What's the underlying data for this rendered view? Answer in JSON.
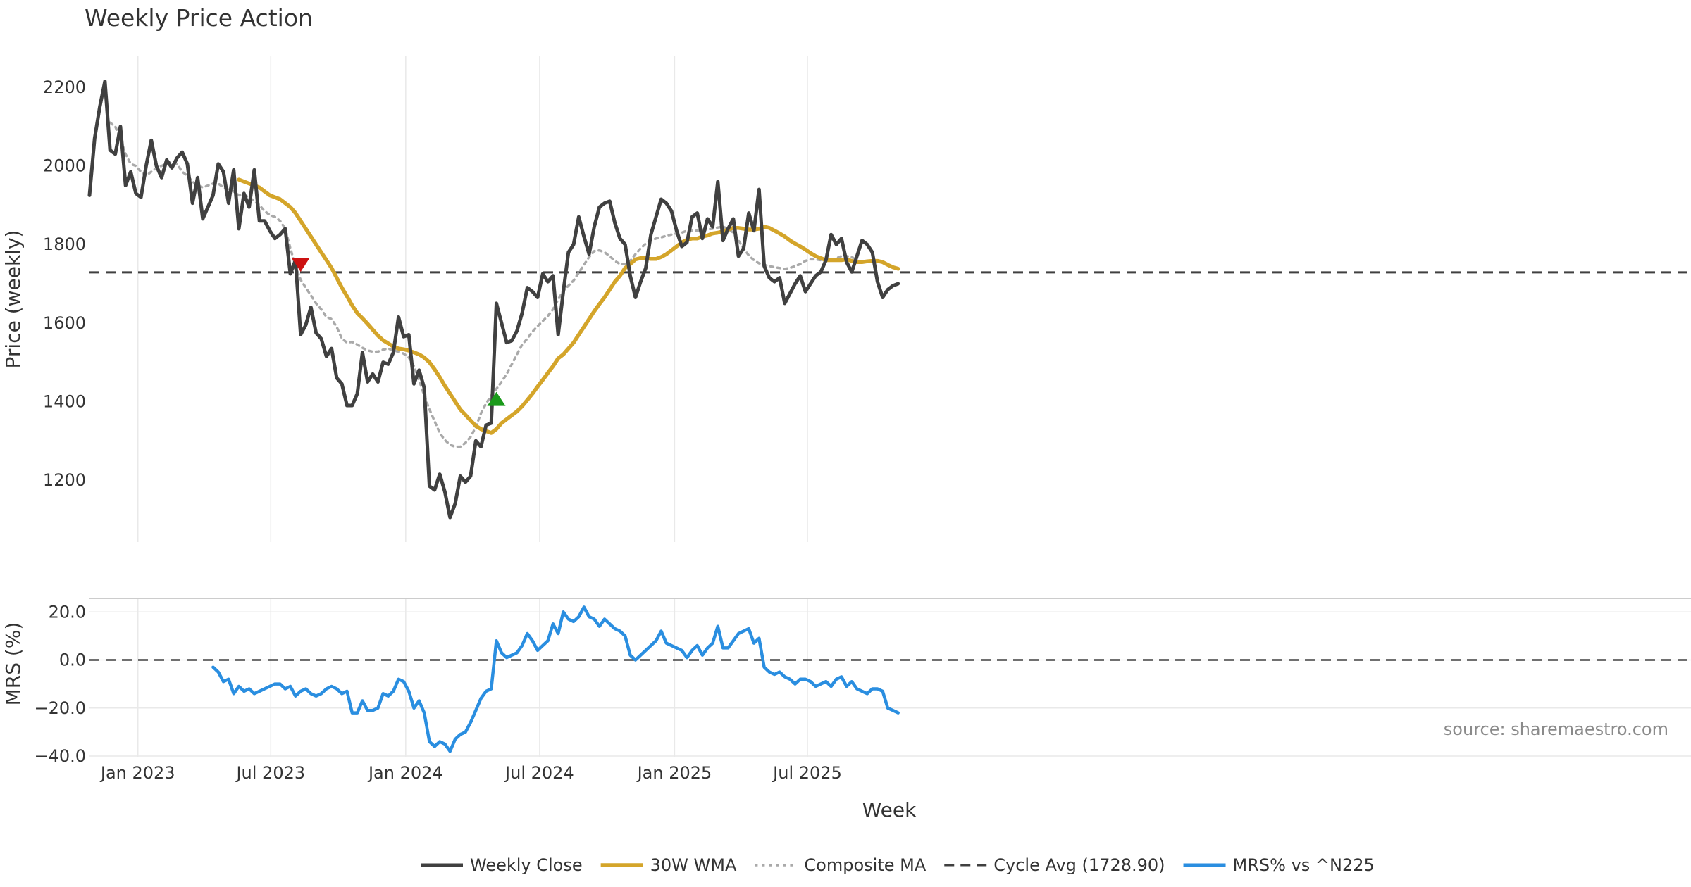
{
  "title": "Weekly Price Action",
  "source": "source: sharemaestro.com",
  "colors": {
    "close": "#404040",
    "wma": "#d4a52a",
    "composite": "#aaaaaa",
    "cycle": "#404040",
    "mrs": "#2a8ee0",
    "sell": "#cc1111",
    "buy": "#1a9a1a",
    "grid": "#e9e9e9"
  },
  "chart_data": [
    {
      "type": "line",
      "panel": "price",
      "ylabel": "Price (weekly)",
      "ylim": [
        1080,
        2240
      ],
      "yticks": [
        1200,
        1400,
        1600,
        1800,
        2000,
        2200
      ],
      "x_start": "2022-10-28",
      "x_step_days": 7,
      "series": [
        {
          "name": "Weekly Close",
          "values": [
            1925,
            2070,
            2150,
            2215,
            2040,
            2030,
            2100,
            1950,
            1985,
            1930,
            1920,
            2000,
            2065,
            2000,
            1970,
            2015,
            1995,
            2020,
            2035,
            2005,
            1905,
            1970,
            1865,
            1895,
            1925,
            2005,
            1985,
            1905,
            1990,
            1840,
            1930,
            1895,
            1990,
            1860,
            1860,
            1835,
            1815,
            1825,
            1840,
            1725,
            1760,
            1570,
            1595,
            1640,
            1575,
            1560,
            1515,
            1535,
            1460,
            1445,
            1390,
            1390,
            1420,
            1525,
            1450,
            1470,
            1450,
            1500,
            1495,
            1525,
            1615,
            1565,
            1570,
            1445,
            1480,
            1435,
            1185,
            1175,
            1215,
            1170,
            1105,
            1140,
            1210,
            1195,
            1210,
            1300,
            1285,
            1340,
            1345,
            1650,
            1600,
            1550,
            1555,
            1580,
            1625,
            1690,
            1680,
            1665,
            1725,
            1705,
            1720,
            1570,
            1680,
            1780,
            1800,
            1870,
            1820,
            1775,
            1845,
            1895,
            1905,
            1910,
            1855,
            1815,
            1800,
            1720,
            1665,
            1705,
            1740,
            1825,
            1870,
            1915,
            1905,
            1885,
            1835,
            1795,
            1805,
            1870,
            1880,
            1815,
            1865,
            1845,
            1960,
            1810,
            1840,
            1865,
            1770,
            1790,
            1880,
            1835,
            1940,
            1745,
            1715,
            1705,
            1715,
            1650,
            1675,
            1700,
            1720,
            1680,
            1700,
            1720,
            1730,
            1760,
            1825,
            1800,
            1815,
            1755,
            1730,
            1770,
            1810,
            1800,
            1780,
            1705,
            1665,
            1685,
            1695,
            1700
          ]
        },
        {
          "name": "30W WMA",
          "start_index": 29,
          "values": [
            1965,
            1960,
            1955,
            1950,
            1945,
            1935,
            1925,
            1920,
            1915,
            1905,
            1895,
            1880,
            1860,
            1840,
            1820,
            1800,
            1780,
            1760,
            1740,
            1715,
            1690,
            1668,
            1645,
            1625,
            1612,
            1598,
            1583,
            1568,
            1556,
            1548,
            1540,
            1535,
            1533,
            1530,
            1525,
            1520,
            1512,
            1500,
            1482,
            1462,
            1440,
            1420,
            1400,
            1380,
            1366,
            1352,
            1338,
            1330,
            1325,
            1320,
            1330,
            1345,
            1355,
            1365,
            1375,
            1388,
            1404,
            1420,
            1438,
            1455,
            1473,
            1490,
            1510,
            1520,
            1535,
            1550,
            1570,
            1590,
            1610,
            1630,
            1648,
            1665,
            1685,
            1705,
            1720,
            1740,
            1750,
            1762,
            1765,
            1765,
            1763,
            1763,
            1768,
            1775,
            1785,
            1795,
            1805,
            1812,
            1815,
            1815,
            1820,
            1823,
            1828,
            1830,
            1833,
            1838,
            1842,
            1842,
            1840,
            1838,
            1838,
            1840,
            1845,
            1842,
            1835,
            1828,
            1820,
            1810,
            1802,
            1795,
            1787,
            1778,
            1770,
            1765,
            1760,
            1760,
            1760,
            1760,
            1762,
            1758,
            1755,
            1755,
            1757,
            1758,
            1758,
            1755,
            1748,
            1742,
            1738
          ]
        },
        {
          "name": "Composite MA",
          "start_index": 4,
          "values": [
            2110,
            2100,
            2070,
            2030,
            2005,
            2000,
            1985,
            1975,
            1985,
            1995,
            2000,
            2005,
            2010,
            2005,
            1985,
            1975,
            1960,
            1950,
            1945,
            1950,
            1955,
            1955,
            1945,
            1940,
            1935,
            1925,
            1925,
            1920,
            1910,
            1900,
            1885,
            1875,
            1870,
            1860,
            1840,
            1790,
            1745,
            1710,
            1690,
            1670,
            1650,
            1635,
            1615,
            1610,
            1590,
            1560,
            1550,
            1552,
            1545,
            1537,
            1530,
            1527,
            1527,
            1532,
            1535,
            1530,
            1527,
            1522,
            1512,
            1490,
            1455,
            1415,
            1380,
            1350,
            1320,
            1302,
            1290,
            1285,
            1285,
            1295,
            1310,
            1335,
            1370,
            1395,
            1415,
            1432,
            1450,
            1470,
            1495,
            1520,
            1545,
            1560,
            1578,
            1592,
            1605,
            1618,
            1635,
            1660,
            1682,
            1695,
            1708,
            1728,
            1748,
            1768,
            1783,
            1785,
            1780,
            1770,
            1758,
            1750,
            1750,
            1758,
            1775,
            1790,
            1802,
            1810,
            1815,
            1818,
            1822,
            1825,
            1828,
            1830,
            1835,
            1835,
            1835,
            1838,
            1838,
            1840,
            1843,
            1845,
            1840,
            1830,
            1810,
            1790,
            1772,
            1760,
            1752,
            1748,
            1745,
            1742,
            1740,
            1738,
            1740,
            1745,
            1750,
            1758,
            1762,
            1762,
            1760,
            1758,
            1760,
            1765,
            1770,
            1770,
            1768,
            1760
          ]
        },
        {
          "name": "Cycle Avg (1728.90)",
          "constant": 1728.9
        }
      ],
      "markers": [
        {
          "type": "sell",
          "x_index": 41,
          "y": 1750
        },
        {
          "type": "buy",
          "x_index": 79,
          "y": 1405
        }
      ]
    },
    {
      "type": "line",
      "panel": "mrs",
      "ylabel": "MRS (%)",
      "ylim": [
        -40,
        25
      ],
      "yticks": [
        20.0,
        0.0,
        -20.0,
        -40.0
      ],
      "ytick_labels": [
        "20.0",
        "0.0",
        "−20.0",
        "−40.0"
      ],
      "series": [
        {
          "name": "MRS% vs ^N225",
          "start_index": 24,
          "values": [
            -3,
            -5,
            -9,
            -8,
            -14,
            -11,
            -13,
            -12,
            -14,
            -13,
            -12,
            -11,
            -10,
            -10,
            -12,
            -11,
            -15,
            -13,
            -12,
            -14,
            -15,
            -14,
            -12,
            -11,
            -12,
            -14,
            -13,
            -22,
            -22,
            -17,
            -21,
            -21,
            -20,
            -14,
            -15,
            -13,
            -8,
            -9,
            -13,
            -20,
            -17,
            -22,
            -34,
            -36,
            -34,
            -35,
            -38,
            -33,
            -31,
            -30,
            -26,
            -21,
            -16,
            -13,
            -12,
            8,
            3,
            1,
            2,
            3,
            6,
            11,
            8,
            4,
            6,
            8,
            15,
            11,
            20,
            17,
            16,
            18,
            22,
            18,
            17,
            14,
            17,
            15,
            13,
            12,
            10,
            2,
            0,
            2,
            4,
            6,
            8,
            12,
            7,
            6,
            5,
            4,
            1,
            4,
            6,
            2,
            5,
            7,
            14,
            5,
            5,
            8,
            11,
            12,
            13,
            7,
            9,
            -3,
            -5,
            -6,
            -5,
            -7,
            -8,
            -10,
            -8,
            -8,
            -9,
            -11,
            -10,
            -9,
            -11,
            -8,
            -7,
            -11,
            -9,
            -12,
            -13,
            -14,
            -12,
            -12,
            -13,
            -20,
            -21,
            -22
          ]
        }
      ],
      "zero_line": 0
    }
  ],
  "xaxis": {
    "label": "Week",
    "ticks": [
      {
        "label": "Jan 2023",
        "index": 9.4
      },
      {
        "label": "Jul 2023",
        "index": 35.2
      },
      {
        "label": "Jan 2024",
        "index": 61.4
      },
      {
        "label": "Jul 2024",
        "index": 87.4
      },
      {
        "label": "Jan 2025",
        "index": 113.6
      },
      {
        "label": "Jul 2025",
        "index": 139.4
      }
    ]
  },
  "legend": {
    "placement": "bottom-center",
    "items": [
      {
        "label": "Weekly Close",
        "style": "close"
      },
      {
        "label": "30W WMA",
        "style": "wma"
      },
      {
        "label": "Composite MA",
        "style": "composite"
      },
      {
        "label": "Cycle Avg (1728.90)",
        "style": "cycle"
      },
      {
        "label": "MRS% vs ^N225",
        "style": "mrs"
      }
    ]
  }
}
